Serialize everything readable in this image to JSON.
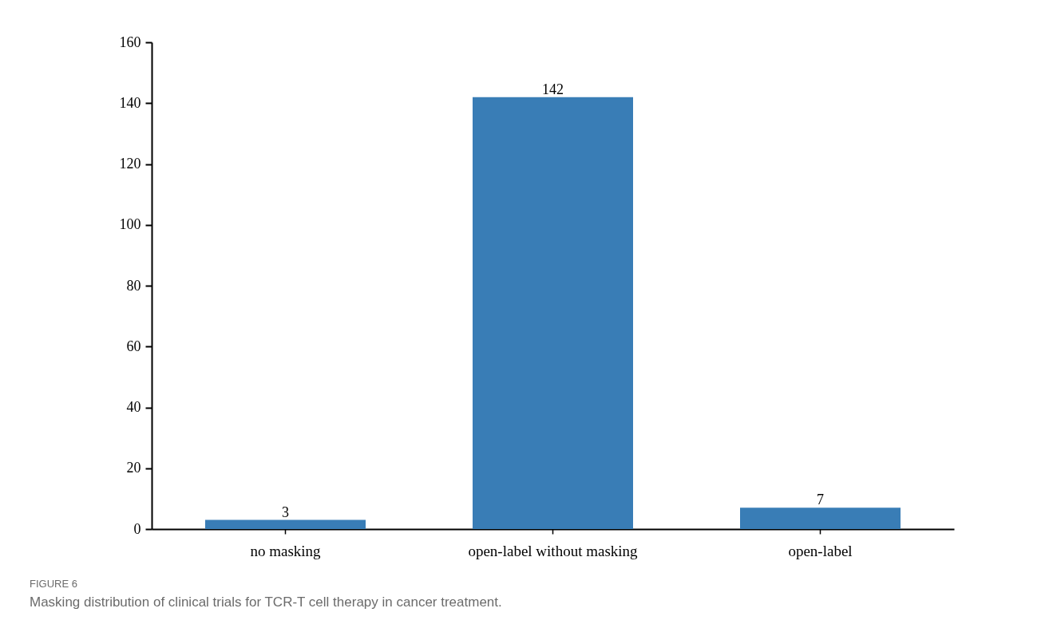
{
  "chart_data": {
    "type": "bar",
    "categories": [
      "no masking",
      "open-label without masking",
      "open-label"
    ],
    "values": [
      3,
      142,
      7
    ],
    "color": "#397db6",
    "ylim": [
      0,
      160
    ],
    "yticks": [
      0,
      20,
      40,
      60,
      80,
      100,
      120,
      140,
      160
    ],
    "grid": false,
    "data_labels": true,
    "annotations": [
      "FIGURE 6",
      "Masking distribution of clinical trials for TCR-T cell therapy in cancer treatment."
    ]
  }
}
